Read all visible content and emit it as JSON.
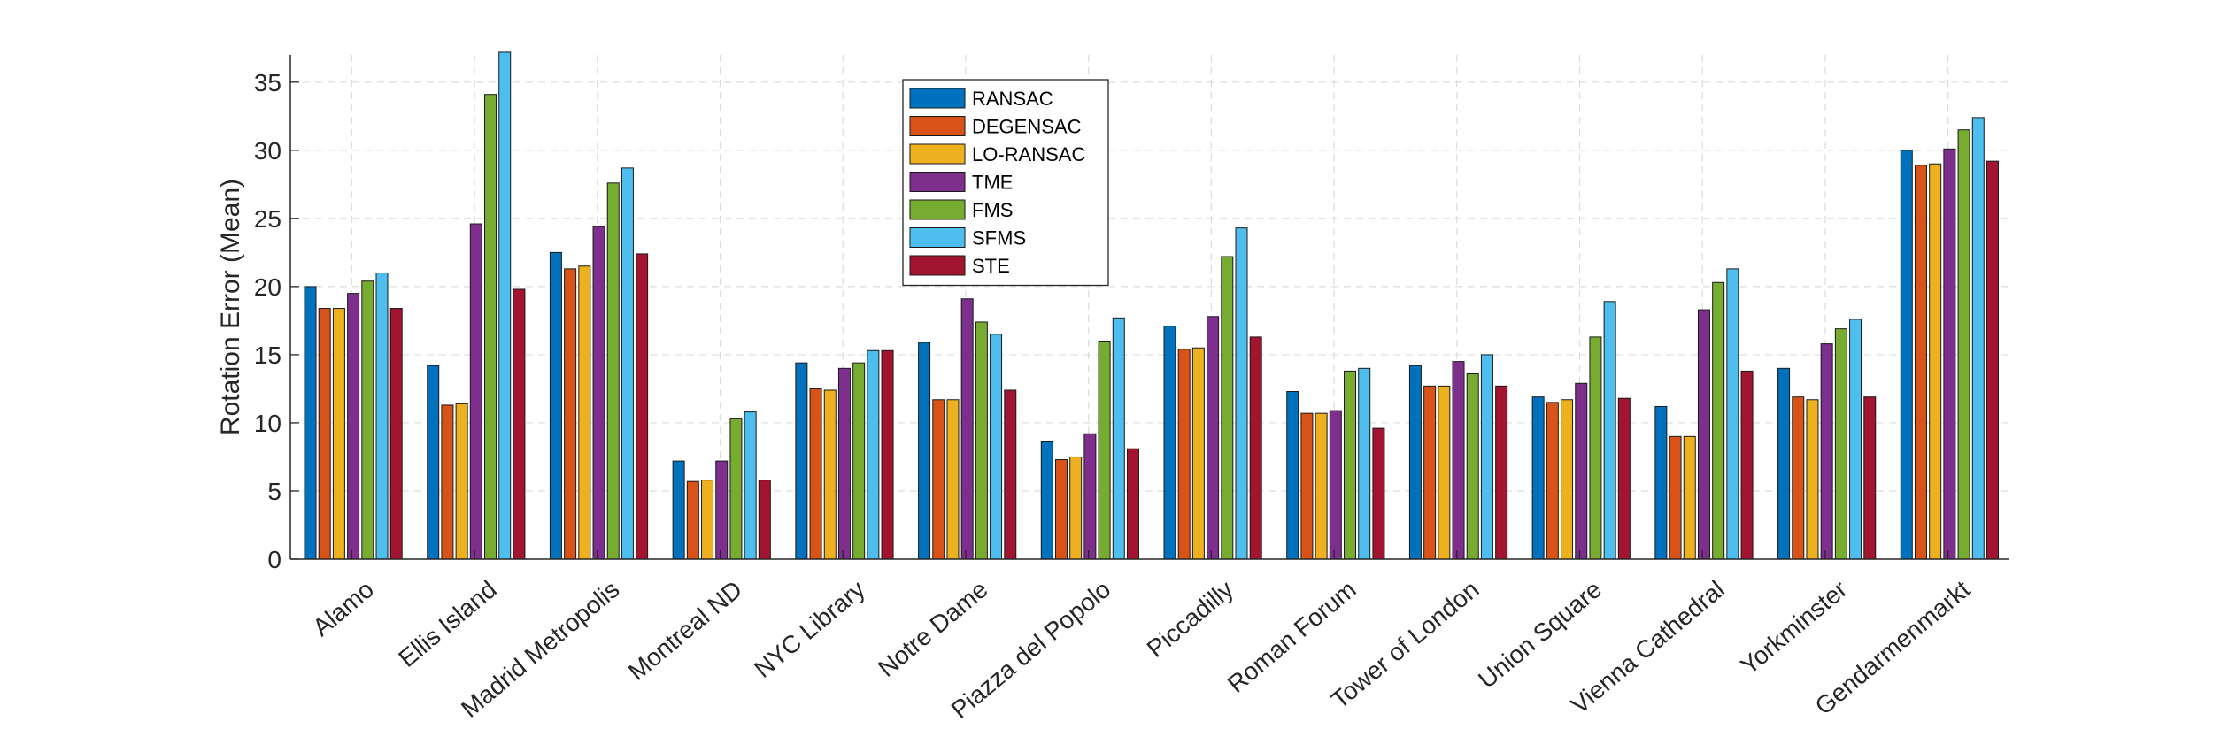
{
  "chart_data": {
    "type": "bar",
    "ylabel": "Rotation Error (Mean)",
    "xlabel": "",
    "ylim": [
      0,
      37
    ],
    "yticks": [
      0,
      5,
      10,
      15,
      20,
      25,
      30,
      35
    ],
    "grid": true,
    "legend_position": "top-center",
    "categories": [
      "Alamo",
      "Ellis Island",
      "Madrid Metropolis",
      "Montreal ND",
      "NYC Library",
      "Notre Dame",
      "Piazza del Popolo",
      "Piccadilly",
      "Roman Forum",
      "Tower of London",
      "Union Square",
      "Vienna Cathedral",
      "Yorkminster",
      "Gendarmenmarkt"
    ],
    "series": [
      {
        "name": "RANSAC",
        "color": "#0072BD",
        "values": [
          20.0,
          14.2,
          22.5,
          7.2,
          14.4,
          15.9,
          8.6,
          17.1,
          12.3,
          14.2,
          11.9,
          11.2,
          14.0,
          30.0
        ]
      },
      {
        "name": "DEGENSAC",
        "color": "#D95319",
        "values": [
          18.4,
          11.3,
          21.3,
          5.7,
          12.5,
          11.7,
          7.3,
          15.4,
          10.7,
          12.7,
          11.5,
          9.0,
          11.9,
          28.9
        ]
      },
      {
        "name": "LO-RANSAC",
        "color": "#EDB120",
        "values": [
          18.4,
          11.4,
          21.5,
          5.8,
          12.4,
          11.7,
          7.5,
          15.5,
          10.7,
          12.7,
          11.7,
          9.0,
          11.7,
          29.0
        ]
      },
      {
        "name": "TME",
        "color": "#7E2F8E",
        "values": [
          19.5,
          24.6,
          24.4,
          7.2,
          14.0,
          19.1,
          9.2,
          17.8,
          10.9,
          14.5,
          12.9,
          18.3,
          15.8,
          30.1
        ]
      },
      {
        "name": "FMS",
        "color": "#77AC30",
        "values": [
          20.4,
          34.1,
          27.6,
          10.3,
          14.4,
          17.4,
          16.0,
          22.2,
          13.8,
          13.6,
          16.3,
          20.3,
          16.9,
          31.5
        ]
      },
      {
        "name": "SFMS",
        "color": "#4DBEEE",
        "values": [
          21.0,
          37.2,
          28.7,
          10.8,
          15.3,
          16.5,
          17.7,
          24.3,
          14.0,
          15.0,
          18.9,
          21.3,
          17.6,
          32.4
        ]
      },
      {
        "name": "STE",
        "color": "#A2142F",
        "values": [
          18.4,
          19.8,
          22.4,
          5.8,
          15.3,
          12.4,
          8.1,
          16.3,
          9.6,
          12.7,
          11.8,
          13.8,
          11.9,
          29.2
        ]
      }
    ]
  }
}
